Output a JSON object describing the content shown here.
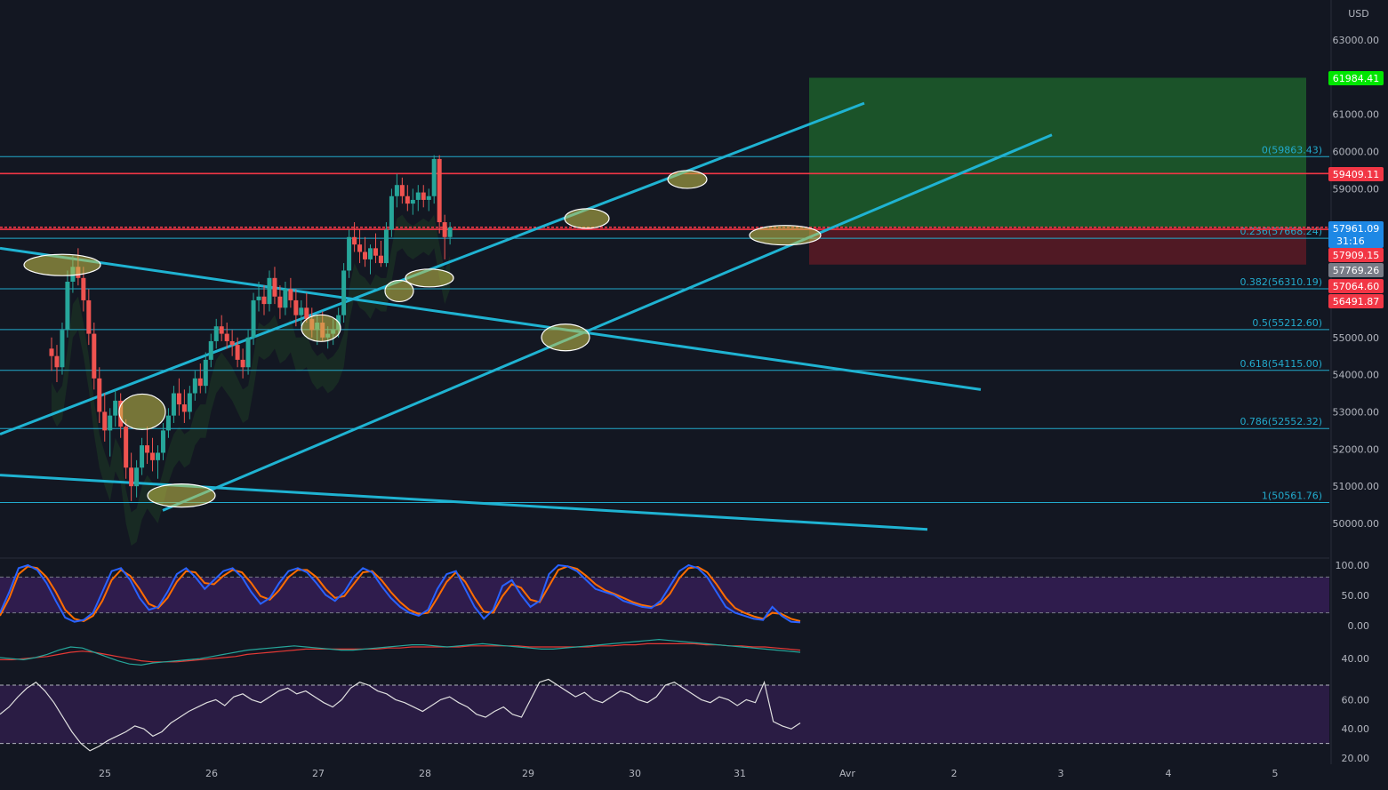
{
  "colors": {
    "background": "#131722",
    "up_candle": "#26a69a",
    "down_candle": "#ef5350",
    "channel_line": "#1fb3d2",
    "fib_line": "#22aacc",
    "horizontal_red": "#f23645",
    "target_zone": "#1d5e2a",
    "stop_zone": "#5c1a25",
    "stoch_k": "#2962ff",
    "stoch_d": "#ff6d00",
    "rsi": "#e0e0e0",
    "band_fill": "#3a1f5c",
    "ellipse_fill": "#c8c24a",
    "green_badge": "#00e600",
    "red_badge": "#f23645",
    "blue_badge": "#1e88e5",
    "gray_badge": "#787b86"
  },
  "chart_data": {
    "type": "candlestick",
    "symbol_currency": "USD",
    "x_axis": {
      "labels": [
        "25",
        "26",
        "27",
        "28",
        "29",
        "30",
        "31",
        "Avr",
        "2",
        "3",
        "4",
        "5"
      ]
    },
    "y_axis": {
      "range": [
        49400,
        64000
      ],
      "ticks": [
        "63000.00",
        "61000.00",
        "60000.00",
        "59000.00",
        "55000.00",
        "54000.00",
        "53000.00",
        "52000.00",
        "51000.00",
        "50000.00"
      ]
    },
    "price_badges": [
      {
        "value": "61984.41",
        "kind": "green"
      },
      {
        "value": "59409.11",
        "kind": "red"
      },
      {
        "value": "57961.09",
        "kind": "blue",
        "sub": "31:16"
      },
      {
        "value": "57909.15",
        "kind": "red"
      },
      {
        "value": "57769.26",
        "kind": "gray"
      },
      {
        "value": "57064.60",
        "kind": "red"
      },
      {
        "value": "56491.87",
        "kind": "red"
      }
    ],
    "fibonacci_levels": [
      {
        "label": "0(59863.43)",
        "price": 59863.43
      },
      {
        "label": "0.236(57668.24)",
        "price": 57668.24
      },
      {
        "label": "0.382(56310.19)",
        "price": 56310.19
      },
      {
        "label": "0.5(55212.60)",
        "price": 55212.6
      },
      {
        "label": "0.618(54115.00)",
        "price": 54115.0
      },
      {
        "label": "0.786(52552.32)",
        "price": 52552.32
      },
      {
        "label": "1(50561.76)",
        "price": 50561.76
      }
    ],
    "horizontal_levels": [
      59409.11,
      57961.09,
      57909.15
    ],
    "position_tool": {
      "target": 61984.41,
      "entry": 57961.09,
      "stop": 56960
    },
    "candles": [
      {
        "t": 0.0,
        "o": 54700,
        "h": 55000,
        "l": 54100,
        "c": 54500
      },
      {
        "t": 0.05,
        "o": 54500,
        "h": 54800,
        "l": 53800,
        "c": 54200
      },
      {
        "t": 0.1,
        "o": 54200,
        "h": 55400,
        "l": 54000,
        "c": 55200
      },
      {
        "t": 0.15,
        "o": 55200,
        "h": 56800,
        "l": 55000,
        "c": 56500
      },
      {
        "t": 0.2,
        "o": 56500,
        "h": 57200,
        "l": 56200,
        "c": 56900
      },
      {
        "t": 0.25,
        "o": 56900,
        "h": 57400,
        "l": 56400,
        "c": 56600
      },
      {
        "t": 0.3,
        "o": 56600,
        "h": 56900,
        "l": 55700,
        "c": 56000
      },
      {
        "t": 0.35,
        "o": 56000,
        "h": 56300,
        "l": 54800,
        "c": 55100
      },
      {
        "t": 0.4,
        "o": 55100,
        "h": 55400,
        "l": 53600,
        "c": 53900
      },
      {
        "t": 0.45,
        "o": 53900,
        "h": 54200,
        "l": 52700,
        "c": 53000
      },
      {
        "t": 0.5,
        "o": 53000,
        "h": 53500,
        "l": 52200,
        "c": 52500
      },
      {
        "t": 0.55,
        "o": 52500,
        "h": 53100,
        "l": 51800,
        "c": 52900
      },
      {
        "t": 0.6,
        "o": 52900,
        "h": 53600,
        "l": 52600,
        "c": 53300
      },
      {
        "t": 0.65,
        "o": 53300,
        "h": 53500,
        "l": 52300,
        "c": 52600
      },
      {
        "t": 0.7,
        "o": 52600,
        "h": 52800,
        "l": 51200,
        "c": 51500
      },
      {
        "t": 0.75,
        "o": 51500,
        "h": 51900,
        "l": 50600,
        "c": 51000
      },
      {
        "t": 0.8,
        "o": 51000,
        "h": 51700,
        "l": 50700,
        "c": 51500
      },
      {
        "t": 0.85,
        "o": 51500,
        "h": 52300,
        "l": 51300,
        "c": 52100
      },
      {
        "t": 0.9,
        "o": 52100,
        "h": 52600,
        "l": 51600,
        "c": 51900
      },
      {
        "t": 0.95,
        "o": 51900,
        "h": 52300,
        "l": 51400,
        "c": 51700
      },
      {
        "t": 1.0,
        "o": 51700,
        "h": 52100,
        "l": 51200,
        "c": 51900
      },
      {
        "t": 1.05,
        "o": 51900,
        "h": 52700,
        "l": 51700,
        "c": 52500
      },
      {
        "t": 1.1,
        "o": 52500,
        "h": 53100,
        "l": 52300,
        "c": 52900
      },
      {
        "t": 1.15,
        "o": 52900,
        "h": 53700,
        "l": 52700,
        "c": 53500
      },
      {
        "t": 1.2,
        "o": 53500,
        "h": 53900,
        "l": 52900,
        "c": 53200
      },
      {
        "t": 1.25,
        "o": 53200,
        "h": 53600,
        "l": 52700,
        "c": 53000
      },
      {
        "t": 1.3,
        "o": 53000,
        "h": 53700,
        "l": 52800,
        "c": 53500
      },
      {
        "t": 1.35,
        "o": 53500,
        "h": 54100,
        "l": 53300,
        "c": 53900
      },
      {
        "t": 1.4,
        "o": 53900,
        "h": 54300,
        "l": 53500,
        "c": 53700
      },
      {
        "t": 1.45,
        "o": 53700,
        "h": 54600,
        "l": 53500,
        "c": 54400
      },
      {
        "t": 1.5,
        "o": 54400,
        "h": 55100,
        "l": 54200,
        "c": 54900
      },
      {
        "t": 1.55,
        "o": 54900,
        "h": 55500,
        "l": 54700,
        "c": 55300
      },
      {
        "t": 1.6,
        "o": 55300,
        "h": 55600,
        "l": 54900,
        "c": 55100
      },
      {
        "t": 1.65,
        "o": 55100,
        "h": 55400,
        "l": 54700,
        "c": 54900
      },
      {
        "t": 1.7,
        "o": 54900,
        "h": 55200,
        "l": 54500,
        "c": 54800
      },
      {
        "t": 1.75,
        "o": 54800,
        "h": 55000,
        "l": 54200,
        "c": 54400
      },
      {
        "t": 1.8,
        "o": 54400,
        "h": 54700,
        "l": 53900,
        "c": 54200
      },
      {
        "t": 1.85,
        "o": 54200,
        "h": 55200,
        "l": 54000,
        "c": 55000
      },
      {
        "t": 1.9,
        "o": 55000,
        "h": 56200,
        "l": 54800,
        "c": 56000
      },
      {
        "t": 1.95,
        "o": 56000,
        "h": 56500,
        "l": 55700,
        "c": 56100
      },
      {
        "t": 2.0,
        "o": 56100,
        "h": 56400,
        "l": 55600,
        "c": 55900
      },
      {
        "t": 2.05,
        "o": 55900,
        "h": 56800,
        "l": 55700,
        "c": 56600
      },
      {
        "t": 2.1,
        "o": 56600,
        "h": 56900,
        "l": 55900,
        "c": 56100
      },
      {
        "t": 2.15,
        "o": 56100,
        "h": 56400,
        "l": 55500,
        "c": 55800
      },
      {
        "t": 2.2,
        "o": 55800,
        "h": 56500,
        "l": 55600,
        "c": 56300
      },
      {
        "t": 2.25,
        "o": 56300,
        "h": 56600,
        "l": 55800,
        "c": 56000
      },
      {
        "t": 2.3,
        "o": 56000,
        "h": 56300,
        "l": 55300,
        "c": 55600
      },
      {
        "t": 2.35,
        "o": 55600,
        "h": 56000,
        "l": 55300,
        "c": 55800
      },
      {
        "t": 2.4,
        "o": 55800,
        "h": 56200,
        "l": 55400,
        "c": 55500
      },
      {
        "t": 2.45,
        "o": 55500,
        "h": 55800,
        "l": 55000,
        "c": 55200
      },
      {
        "t": 2.5,
        "o": 55200,
        "h": 55600,
        "l": 54800,
        "c": 55400
      },
      {
        "t": 2.55,
        "o": 55400,
        "h": 55700,
        "l": 54900,
        "c": 55000
      },
      {
        "t": 2.6,
        "o": 55000,
        "h": 55300,
        "l": 54700,
        "c": 55100
      },
      {
        "t": 2.65,
        "o": 55100,
        "h": 55500,
        "l": 54800,
        "c": 55200
      },
      {
        "t": 2.7,
        "o": 55200,
        "h": 55800,
        "l": 55000,
        "c": 55600
      },
      {
        "t": 2.75,
        "o": 55600,
        "h": 57000,
        "l": 55400,
        "c": 56800
      },
      {
        "t": 2.8,
        "o": 56800,
        "h": 57900,
        "l": 56600,
        "c": 57700
      },
      {
        "t": 2.85,
        "o": 57700,
        "h": 58100,
        "l": 57300,
        "c": 57500
      },
      {
        "t": 2.9,
        "o": 57500,
        "h": 57900,
        "l": 57000,
        "c": 57300
      },
      {
        "t": 2.95,
        "o": 57300,
        "h": 57700,
        "l": 56900,
        "c": 57100
      },
      {
        "t": 3.0,
        "o": 57100,
        "h": 57500,
        "l": 56700,
        "c": 57400
      },
      {
        "t": 3.05,
        "o": 57400,
        "h": 57800,
        "l": 57000,
        "c": 57200
      },
      {
        "t": 3.1,
        "o": 57200,
        "h": 57600,
        "l": 56900,
        "c": 57000
      },
      {
        "t": 3.15,
        "o": 57000,
        "h": 58100,
        "l": 56900,
        "c": 57900
      },
      {
        "t": 3.2,
        "o": 57900,
        "h": 59000,
        "l": 57700,
        "c": 58800
      },
      {
        "t": 3.25,
        "o": 58800,
        "h": 59400,
        "l": 58500,
        "c": 59100
      },
      {
        "t": 3.3,
        "o": 59100,
        "h": 59300,
        "l": 58600,
        "c": 58800
      },
      {
        "t": 3.35,
        "o": 58800,
        "h": 59100,
        "l": 58400,
        "c": 58600
      },
      {
        "t": 3.4,
        "o": 58600,
        "h": 59000,
        "l": 58300,
        "c": 58700
      },
      {
        "t": 3.45,
        "o": 58700,
        "h": 59100,
        "l": 58400,
        "c": 58900
      },
      {
        "t": 3.5,
        "o": 58900,
        "h": 59100,
        "l": 58500,
        "c": 58700
      },
      {
        "t": 3.55,
        "o": 58700,
        "h": 59000,
        "l": 58400,
        "c": 58800
      },
      {
        "t": 3.6,
        "o": 58800,
        "h": 59900,
        "l": 58600,
        "c": 59800
      },
      {
        "t": 3.65,
        "o": 59800,
        "h": 59900,
        "l": 57800,
        "c": 58100
      },
      {
        "t": 3.7,
        "o": 58100,
        "h": 58300,
        "l": 57100,
        "c": 57700
      },
      {
        "t": 3.75,
        "o": 57700,
        "h": 58100,
        "l": 57500,
        "c": 57961
      }
    ],
    "indicators": {
      "stoch_rsi": {
        "ticks": [
          "100.00",
          "50.00",
          "0.00"
        ],
        "k": [
          20,
          55,
          95,
          100,
          92,
          70,
          40,
          12,
          5,
          8,
          20,
          55,
          90,
          95,
          75,
          45,
          25,
          30,
          55,
          85,
          95,
          80,
          60,
          75,
          90,
          95,
          80,
          55,
          35,
          45,
          70,
          90,
          95,
          88,
          70,
          50,
          40,
          55,
          80,
          95,
          88,
          65,
          45,
          30,
          20,
          15,
          25,
          60,
          85,
          90,
          60,
          30,
          10,
          25,
          65,
          75,
          50,
          30,
          40,
          85,
          100,
          98,
          90,
          75,
          60,
          55,
          50,
          40,
          35,
          30,
          28,
          40,
          65,
          90,
          100,
          95,
          80,
          55,
          30,
          20,
          15,
          10,
          8,
          30,
          15,
          5,
          4
        ],
        "d": [
          15,
          45,
          85,
          98,
          95,
          80,
          55,
          25,
          10,
          6,
          15,
          40,
          75,
          92,
          82,
          60,
          35,
          28,
          45,
          72,
          90,
          88,
          70,
          68,
          82,
          92,
          88,
          70,
          48,
          42,
          58,
          80,
          92,
          92,
          80,
          60,
          45,
          48,
          68,
          88,
          90,
          75,
          55,
          38,
          25,
          18,
          20,
          45,
          72,
          88,
          72,
          45,
          22,
          20,
          48,
          68,
          62,
          42,
          38,
          65,
          92,
          98,
          94,
          82,
          68,
          58,
          52,
          45,
          38,
          33,
          30,
          35,
          52,
          78,
          95,
          97,
          88,
          68,
          45,
          28,
          20,
          14,
          10,
          20,
          18,
          10,
          6
        ]
      },
      "macd": {
        "ticks": [
          "40.00"
        ],
        "fast": [
          45,
          44,
          43,
          45,
          48,
          52,
          55,
          54,
          50,
          46,
          42,
          39,
          38,
          40,
          41,
          42,
          43,
          44,
          46,
          48,
          50,
          52,
          53,
          54,
          55,
          56,
          55,
          54,
          53,
          52,
          52,
          53,
          54,
          55,
          56,
          57,
          57,
          56,
          55,
          56,
          57,
          58,
          57,
          56,
          55,
          54,
          53,
          53,
          54,
          55,
          56,
          57,
          58,
          59,
          60,
          61,
          62,
          61,
          60,
          59,
          58,
          57,
          56,
          55,
          54,
          53,
          52,
          51,
          50
        ],
        "slow": [
          43,
          43,
          44,
          45,
          46,
          48,
          50,
          51,
          50,
          48,
          46,
          44,
          42,
          41,
          41,
          41,
          42,
          43,
          44,
          45,
          46,
          48,
          49,
          50,
          51,
          52,
          53,
          53,
          53,
          53,
          53,
          53,
          53,
          54,
          54,
          55,
          55,
          55,
          55,
          55,
          56,
          56,
          56,
          56,
          56,
          55,
          55,
          55,
          55,
          55,
          55,
          56,
          56,
          57,
          57,
          58,
          58,
          58,
          58,
          58,
          57,
          57,
          56,
          56,
          55,
          55,
          54,
          53,
          52
        ]
      },
      "rsi": {
        "ticks": [
          "60.00",
          "40.00",
          "20.00"
        ],
        "values": [
          50,
          55,
          62,
          68,
          72,
          66,
          58,
          48,
          38,
          30,
          25,
          28,
          32,
          35,
          38,
          42,
          40,
          35,
          38,
          44,
          48,
          52,
          55,
          58,
          60,
          56,
          62,
          64,
          60,
          58,
          62,
          66,
          68,
          64,
          66,
          62,
          58,
          55,
          60,
          68,
          72,
          70,
          66,
          64,
          60,
          58,
          55,
          52,
          56,
          60,
          62,
          58,
          55,
          50,
          48,
          52,
          55,
          50,
          48,
          60,
          72,
          74,
          70,
          66,
          62,
          65,
          60,
          58,
          62,
          66,
          64,
          60,
          58,
          62,
          70,
          72,
          68,
          64,
          60,
          58,
          62,
          60,
          56,
          60,
          58,
          72,
          45,
          42,
          40,
          44
        ]
      }
    }
  }
}
